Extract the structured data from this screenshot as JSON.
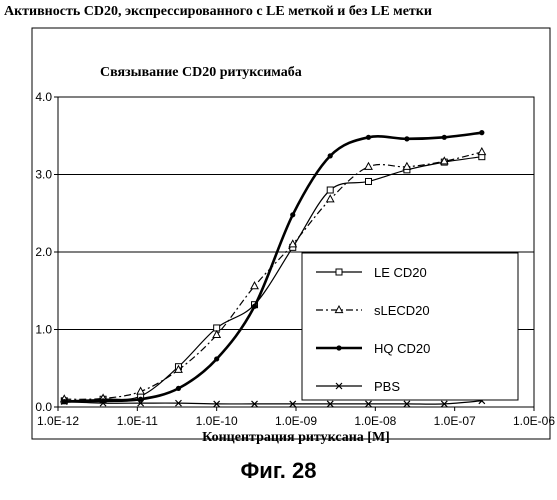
{
  "header": {
    "title": "Активность CD20, экспрессированного с LE меткой и без LE метки",
    "caption": "Фиг. 28"
  },
  "chart_data": {
    "type": "line",
    "title": "Связывание CD20 ритуксимаба",
    "xlabel": "Концентрация ритуксана [M]",
    "ylabel": "",
    "x_scale": "log",
    "xlim": [
      1e-12,
      1e-06
    ],
    "ylim": [
      0,
      4
    ],
    "grid": "horizontal",
    "legend_position": "right",
    "x_ticks": [
      1e-12,
      1e-11,
      1e-10,
      1e-09,
      1e-08,
      1e-07,
      1e-06
    ],
    "x_tick_labels": [
      "1.0E-12",
      "1.0E-11",
      "1.0E-10",
      "1.0E-09",
      "1.0E-08",
      "1.0E-07",
      "1.0E-06"
    ],
    "y_ticks": [
      0,
      1,
      2,
      3,
      4
    ],
    "y_tick_labels": [
      "0.0",
      "1.0",
      "2.0",
      "3.0",
      "4.0"
    ],
    "x": [
      1.2e-12,
      3.7e-12,
      1.1e-11,
      3.3e-11,
      1e-10,
      3e-10,
      9.1e-10,
      2.7e-09,
      8.2e-09,
      2.5e-08,
      7.4e-08,
      2.2e-07
    ],
    "series": [
      {
        "name": "LE CD20",
        "marker": "square",
        "dash": "solid",
        "width": 1.2,
        "values": [
          0.08,
          0.1,
          0.14,
          0.52,
          1.02,
          1.32,
          2.06,
          2.8,
          2.91,
          3.06,
          3.16,
          3.23
        ]
      },
      {
        "name": "sLECD20",
        "marker": "triangle",
        "dash": "dashdot",
        "width": 1.2,
        "values": [
          0.1,
          0.11,
          0.2,
          0.48,
          0.93,
          1.56,
          2.1,
          2.68,
          3.1,
          3.1,
          3.17,
          3.29
        ]
      },
      {
        "name": "HQ CD20",
        "marker": "dot",
        "dash": "solid",
        "width": 2.6,
        "values": [
          0.07,
          0.08,
          0.1,
          0.24,
          0.62,
          1.3,
          2.48,
          3.24,
          3.48,
          3.46,
          3.48,
          3.54
        ]
      },
      {
        "name": "PBS",
        "marker": "x",
        "dash": "solid",
        "width": 1.2,
        "values": [
          0.07,
          0.05,
          0.05,
          0.05,
          0.04,
          0.04,
          0.04,
          0.04,
          0.04,
          0.04,
          0.04,
          0.08
        ]
      }
    ]
  }
}
